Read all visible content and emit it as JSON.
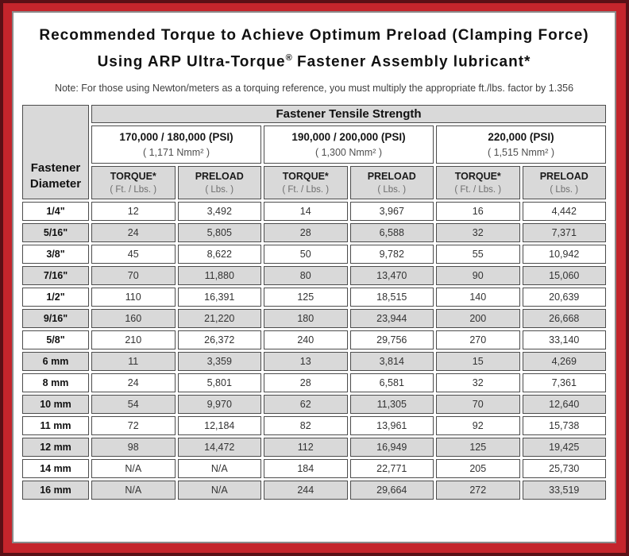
{
  "title": {
    "line1": "Recommended Torque to Achieve Optimum Preload (Clamping Force)",
    "line2_pre": "Using ARP Ultra-Torque",
    "line2_sup": "®",
    "line2_post": " Fastener Assembly lubricant*"
  },
  "note": "Note: For those using Newton/meters as a torquing reference, you must multiply the appropriate ft./lbs. factor by 1.356",
  "colors": {
    "frame_red": "#c4252c",
    "frame_dark_maroon": "#5a1016",
    "content_border_gray": "#8a8a8a",
    "cell_gray": "#d9d9d9",
    "cell_border": "#4c4c4c"
  },
  "table": {
    "corner_header": "Fastener Diameter",
    "tensile_header": "Fastener Tensile Strength",
    "groups": [
      {
        "psi": "170,000 / 180,000 (PSI)",
        "nmm": "( 1,171 Nmm² )"
      },
      {
        "psi": "190,000 / 200,000 (PSI)",
        "nmm": "( 1,300 Nmm² )"
      },
      {
        "psi": "220,000 (PSI)",
        "nmm": "( 1,515 Nmm² )"
      }
    ],
    "col_headers": {
      "torque": "TORQUE*",
      "torque_unit": "( Ft. / Lbs. )",
      "preload": "PRELOAD",
      "preload_unit": "( Lbs. )"
    },
    "rows": [
      {
        "d": "1/4\"",
        "v": [
          "12",
          "3,492",
          "14",
          "3,967",
          "16",
          "4,442"
        ]
      },
      {
        "d": "5/16\"",
        "v": [
          "24",
          "5,805",
          "28",
          "6,588",
          "32",
          "7,371"
        ]
      },
      {
        "d": "3/8\"",
        "v": [
          "45",
          "8,622",
          "50",
          "9,782",
          "55",
          "10,942"
        ]
      },
      {
        "d": "7/16\"",
        "v": [
          "70",
          "11,880",
          "80",
          "13,470",
          "90",
          "15,060"
        ]
      },
      {
        "d": "1/2\"",
        "v": [
          "110",
          "16,391",
          "125",
          "18,515",
          "140",
          "20,639"
        ]
      },
      {
        "d": "9/16\"",
        "v": [
          "160",
          "21,220",
          "180",
          "23,944",
          "200",
          "26,668"
        ]
      },
      {
        "d": "5/8\"",
        "v": [
          "210",
          "26,372",
          "240",
          "29,756",
          "270",
          "33,140"
        ]
      },
      {
        "d": "6 mm",
        "v": [
          "11",
          "3,359",
          "13",
          "3,814",
          "15",
          "4,269"
        ]
      },
      {
        "d": "8 mm",
        "v": [
          "24",
          "5,801",
          "28",
          "6,581",
          "32",
          "7,361"
        ]
      },
      {
        "d": "10 mm",
        "v": [
          "54",
          "9,970",
          "62",
          "11,305",
          "70",
          "12,640"
        ]
      },
      {
        "d": "11 mm",
        "v": [
          "72",
          "12,184",
          "82",
          "13,961",
          "92",
          "15,738"
        ]
      },
      {
        "d": "12 mm",
        "v": [
          "98",
          "14,472",
          "112",
          "16,949",
          "125",
          "19,425"
        ]
      },
      {
        "d": "14 mm",
        "v": [
          "N/A",
          "N/A",
          "184",
          "22,771",
          "205",
          "25,730"
        ]
      },
      {
        "d": "16 mm",
        "v": [
          "N/A",
          "N/A",
          "244",
          "29,664",
          "272",
          "33,519"
        ]
      }
    ]
  }
}
